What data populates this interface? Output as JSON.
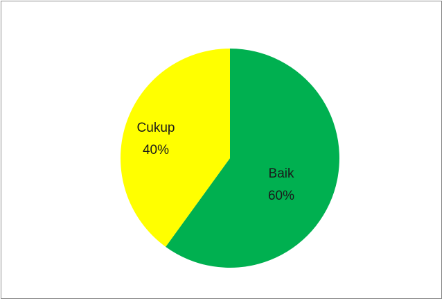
{
  "chart_data": {
    "type": "pie",
    "title": "",
    "categories": [
      "Baik",
      "Cukup"
    ],
    "values": [
      60,
      40
    ],
    "value_labels": [
      "60%",
      "40%"
    ],
    "colors": [
      "#00b050",
      "#ffff00"
    ],
    "start_angle_deg": 0,
    "direction": "clockwise",
    "legend": "none"
  }
}
